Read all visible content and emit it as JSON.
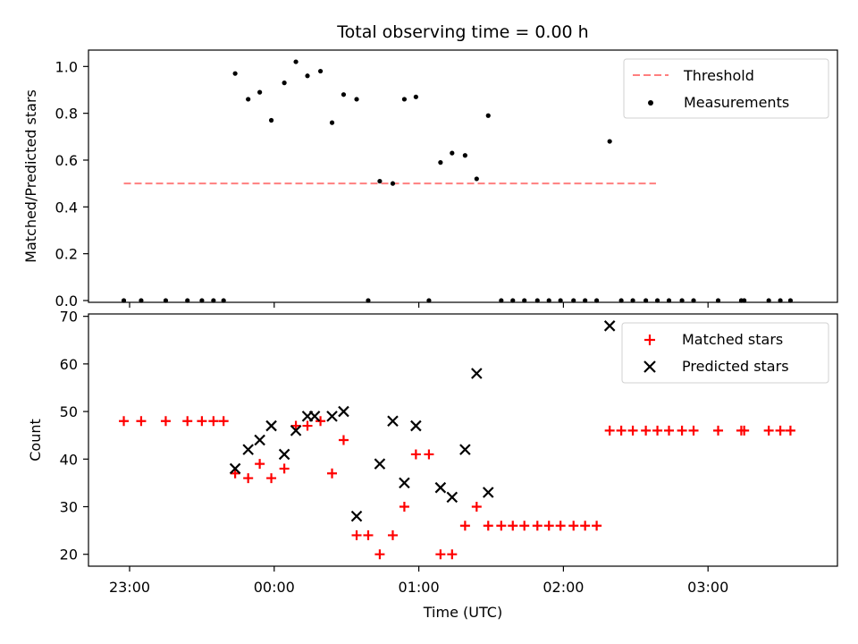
{
  "colors": {
    "threshold": "#ff7f7f",
    "measurement": "#000000",
    "matched": "#ff0000",
    "predicted": "#000000"
  },
  "chart_data": [
    {
      "type": "scatter",
      "title": "Total observing time = 0.00 h",
      "xlabel": "",
      "ylabel": "Matched/Predicted stars",
      "ylim": [
        0.0,
        1.07
      ],
      "yticks": [
        0.0,
        0.2,
        0.4,
        0.6,
        0.8,
        1.0
      ],
      "ytick_labels": [
        "0.0",
        "0.2",
        "0.4",
        "0.6",
        "0.8",
        "1.0"
      ],
      "legend_position": "top-right",
      "threshold": {
        "name": "Threshold",
        "style": "dashed",
        "y": 0.5,
        "x_range": [
          -0.04,
          3.64
        ]
      },
      "series": [
        {
          "name": "Measurements",
          "points": [
            [
              -0.04,
              0.0
            ],
            [
              0.08,
              0.0
            ],
            [
              0.25,
              0.0
            ],
            [
              0.4,
              0.0
            ],
            [
              0.5,
              0.0
            ],
            [
              0.58,
              0.0
            ],
            [
              0.65,
              0.0
            ],
            [
              0.73,
              0.97
            ],
            [
              0.82,
              0.86
            ],
            [
              0.9,
              0.89
            ],
            [
              0.98,
              0.77
            ],
            [
              1.07,
              0.93
            ],
            [
              1.15,
              1.02
            ],
            [
              1.23,
              0.96
            ],
            [
              1.32,
              0.98
            ],
            [
              1.4,
              0.76
            ],
            [
              1.48,
              0.88
            ],
            [
              1.57,
              0.86
            ],
            [
              1.65,
              0.0
            ],
            [
              1.73,
              0.51
            ],
            [
              1.82,
              0.5
            ],
            [
              1.9,
              0.86
            ],
            [
              1.98,
              0.87
            ],
            [
              2.07,
              0.0
            ],
            [
              2.15,
              0.59
            ],
            [
              2.23,
              0.63
            ],
            [
              2.32,
              0.62
            ],
            [
              2.4,
              0.52
            ],
            [
              2.48,
              0.79
            ],
            [
              2.57,
              0.0
            ],
            [
              2.65,
              0.0
            ],
            [
              2.73,
              0.0
            ],
            [
              2.82,
              0.0
            ],
            [
              2.9,
              0.0
            ],
            [
              2.98,
              0.0
            ],
            [
              3.07,
              0.0
            ],
            [
              3.15,
              0.0
            ],
            [
              3.23,
              0.0
            ],
            [
              3.32,
              0.68
            ],
            [
              3.4,
              0.0
            ],
            [
              3.48,
              0.0
            ],
            [
              3.57,
              0.0
            ],
            [
              3.65,
              0.0
            ],
            [
              3.73,
              0.0
            ],
            [
              3.82,
              0.0
            ],
            [
              3.9,
              0.0
            ],
            [
              4.07,
              0.0
            ],
            [
              4.23,
              0.0
            ],
            [
              4.25,
              0.0
            ],
            [
              4.42,
              0.0
            ],
            [
              4.5,
              0.0
            ],
            [
              4.57,
              0.0
            ]
          ]
        }
      ]
    },
    {
      "type": "scatter",
      "title": "",
      "xlabel": "Time (UTC)",
      "ylabel": "Count",
      "ylim": [
        17.5,
        70.5
      ],
      "yticks": [
        20,
        30,
        40,
        50,
        60,
        70
      ],
      "ytick_labels": [
        "20",
        "30",
        "40",
        "50",
        "60",
        "70"
      ],
      "xticks": [
        0,
        1,
        2,
        3,
        4
      ],
      "xtick_labels": [
        "23:00",
        "00:00",
        "01:00",
        "02:00",
        "03:00"
      ],
      "legend_position": "top-right",
      "series": [
        {
          "name": "Matched stars",
          "marker": "plus",
          "points": [
            [
              -0.04,
              48
            ],
            [
              0.08,
              48
            ],
            [
              0.25,
              48
            ],
            [
              0.4,
              48
            ],
            [
              0.5,
              48
            ],
            [
              0.58,
              48
            ],
            [
              0.65,
              48
            ],
            [
              0.73,
              37
            ],
            [
              0.82,
              36
            ],
            [
              0.9,
              39
            ],
            [
              0.98,
              36
            ],
            [
              1.07,
              38
            ],
            [
              1.15,
              47
            ],
            [
              1.23,
              47
            ],
            [
              1.32,
              48
            ],
            [
              1.4,
              37
            ],
            [
              1.48,
              44
            ],
            [
              1.57,
              24
            ],
            [
              1.65,
              24
            ],
            [
              1.73,
              20
            ],
            [
              1.82,
              24
            ],
            [
              1.9,
              30
            ],
            [
              1.98,
              41
            ],
            [
              2.07,
              41
            ],
            [
              2.15,
              20
            ],
            [
              2.23,
              20
            ],
            [
              2.32,
              26
            ],
            [
              2.4,
              30
            ],
            [
              2.48,
              26
            ],
            [
              2.57,
              26
            ],
            [
              2.65,
              26
            ],
            [
              2.73,
              26
            ],
            [
              2.82,
              26
            ],
            [
              2.9,
              26
            ],
            [
              2.98,
              26
            ],
            [
              3.07,
              26
            ],
            [
              3.15,
              26
            ],
            [
              3.23,
              26
            ],
            [
              3.32,
              46
            ],
            [
              3.4,
              46
            ],
            [
              3.48,
              46
            ],
            [
              3.57,
              46
            ],
            [
              3.65,
              46
            ],
            [
              3.73,
              46
            ],
            [
              3.82,
              46
            ],
            [
              3.9,
              46
            ],
            [
              4.07,
              46
            ],
            [
              4.23,
              46
            ],
            [
              4.25,
              46
            ],
            [
              4.42,
              46
            ],
            [
              4.5,
              46
            ],
            [
              4.57,
              46
            ]
          ]
        },
        {
          "name": "Predicted stars",
          "marker": "x",
          "points": [
            [
              0.73,
              38
            ],
            [
              0.82,
              42
            ],
            [
              0.9,
              44
            ],
            [
              0.98,
              47
            ],
            [
              1.07,
              41
            ],
            [
              1.15,
              46
            ],
            [
              1.23,
              49
            ],
            [
              1.28,
              49
            ],
            [
              1.4,
              49
            ],
            [
              1.48,
              50
            ],
            [
              1.57,
              28
            ],
            [
              1.73,
              39
            ],
            [
              1.82,
              48
            ],
            [
              1.9,
              35
            ],
            [
              1.98,
              47
            ],
            [
              2.15,
              34
            ],
            [
              2.23,
              32
            ],
            [
              2.32,
              42
            ],
            [
              2.4,
              58
            ],
            [
              2.48,
              33
            ],
            [
              3.32,
              68
            ]
          ]
        }
      ]
    }
  ]
}
